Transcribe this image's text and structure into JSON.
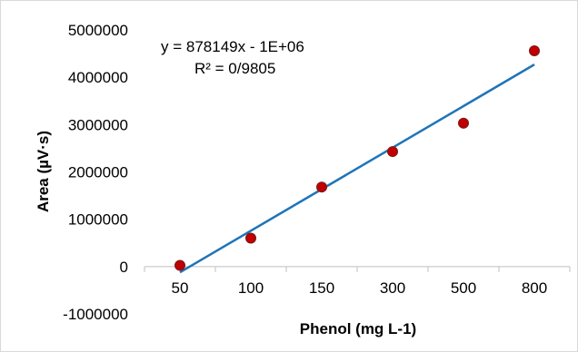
{
  "chart_data": {
    "type": "scatter",
    "xlabel": "Phenol (mg L-1)",
    "ylabel": "Area (µV·s)",
    "categories": [
      "50",
      "100",
      "150",
      "300",
      "500",
      "800"
    ],
    "series": [
      {
        "values": [
          25000,
          600000,
          1680000,
          2430000,
          3030000,
          4560000
        ]
      }
    ],
    "trendline": {
      "type": "linear",
      "equation": "y = 878149x - 1E+06",
      "r_squared": "R² = 0/9805",
      "slope": 878149,
      "intercept": -1000000
    },
    "yticks": [
      "5000000",
      "4000000",
      "3000000",
      "2000000",
      "1000000",
      "0",
      "-1000000"
    ],
    "ylim": [
      -1000000,
      5000000
    ],
    "colors": {
      "marker_fill": "#c00000",
      "marker_stroke": "#7a1a1a",
      "trendline": "#1f74b8",
      "gridline": "#d9d9d9",
      "axis": "#bfbfbf"
    },
    "grid": false
  }
}
